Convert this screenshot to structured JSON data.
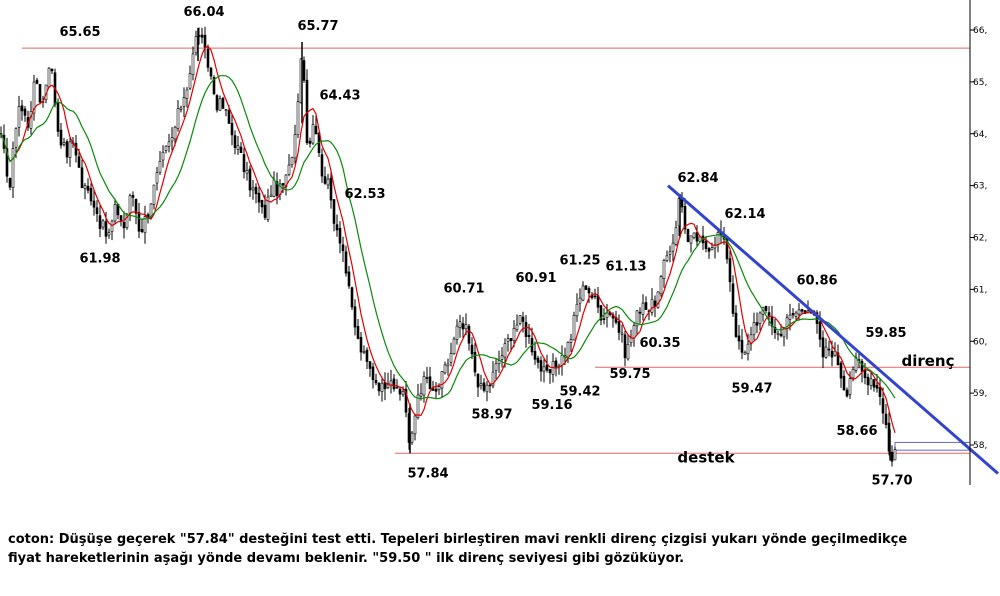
{
  "chart_data": {
    "type": "candlestick",
    "title": "",
    "y_axis": {
      "side": "right",
      "ylim": [
        57.4,
        66.5
      ],
      "ticks": [
        {
          "value": 66,
          "label": "66,"
        },
        {
          "value": 65,
          "label": "65,"
        },
        {
          "value": 64,
          "label": "64,"
        },
        {
          "value": 63,
          "label": "63,"
        },
        {
          "value": 62,
          "label": "62,"
        },
        {
          "value": 61,
          "label": "61,"
        },
        {
          "value": 60,
          "label": "60,"
        },
        {
          "value": 59,
          "label": "59,"
        },
        {
          "value": 58,
          "label": "58,"
        }
      ]
    },
    "grid": false,
    "x_range": [
      0,
      970
    ],
    "horizontal_lines": [
      {
        "name": "top-resistance",
        "value": 65.65,
        "x_start": 22,
        "x_end": 970,
        "color": "#e06666"
      },
      {
        "name": "direnc-level",
        "value": 59.5,
        "x_start": 595,
        "x_end": 970,
        "color": "#e06666"
      },
      {
        "name": "destek-level",
        "value": 57.84,
        "x_start": 395,
        "x_end": 970,
        "color": "#e06666"
      }
    ],
    "trendline": {
      "name": "direnc-trendline",
      "x1": 668,
      "y1": 63.0,
      "x2": 998,
      "y2": 57.45,
      "color": "#3344cc"
    },
    "price_path": [
      [
        0,
        64.0
      ],
      [
        10,
        63.0
      ],
      [
        18,
        64.6
      ],
      [
        28,
        64.2
      ],
      [
        36,
        65.1
      ],
      [
        42,
        64.5
      ],
      [
        50,
        65.5
      ],
      [
        58,
        64.1
      ],
      [
        66,
        63.6
      ],
      [
        74,
        63.9
      ],
      [
        82,
        63.0
      ],
      [
        92,
        62.8
      ],
      [
        100,
        62.3
      ],
      [
        108,
        61.98
      ],
      [
        116,
        62.6
      ],
      [
        124,
        62.2
      ],
      [
        132,
        62.9
      ],
      [
        140,
        62.1
      ],
      [
        148,
        62.5
      ],
      [
        156,
        63.1
      ],
      [
        164,
        63.6
      ],
      [
        172,
        63.9
      ],
      [
        180,
        64.5
      ],
      [
        188,
        65.0
      ],
      [
        194,
        65.6
      ],
      [
        198,
        66.04
      ],
      [
        204,
        65.6
      ],
      [
        210,
        65.2
      ],
      [
        216,
        64.6
      ],
      [
        224,
        64.5
      ],
      [
        232,
        64.0
      ],
      [
        240,
        63.6
      ],
      [
        248,
        63.1
      ],
      [
        256,
        62.8
      ],
      [
        264,
        62.4
      ],
      [
        272,
        63.0
      ],
      [
        280,
        62.9
      ],
      [
        288,
        63.2
      ],
      [
        295,
        64.0
      ],
      [
        302,
        65.77
      ],
      [
        308,
        63.6
      ],
      [
        314,
        64.4
      ],
      [
        320,
        63.4
      ],
      [
        328,
        63.0
      ],
      [
        335,
        62.3
      ],
      [
        342,
        61.9
      ],
      [
        350,
        60.8
      ],
      [
        358,
        60.0
      ],
      [
        366,
        59.6
      ],
      [
        374,
        59.3
      ],
      [
        382,
        59.1
      ],
      [
        390,
        59.4
      ],
      [
        398,
        58.9
      ],
      [
        404,
        59.1
      ],
      [
        410,
        57.84
      ],
      [
        418,
        59.0
      ],
      [
        426,
        59.3
      ],
      [
        434,
        58.9
      ],
      [
        442,
        59.3
      ],
      [
        450,
        59.7
      ],
      [
        458,
        60.3
      ],
      [
        466,
        60.2
      ],
      [
        474,
        59.5
      ],
      [
        482,
        59.0
      ],
      [
        490,
        59.2
      ],
      [
        498,
        59.6
      ],
      [
        506,
        59.9
      ],
      [
        514,
        60.3
      ],
      [
        522,
        60.4
      ],
      [
        530,
        60.0
      ],
      [
        538,
        59.6
      ],
      [
        546,
        59.3
      ],
      [
        554,
        59.5
      ],
      [
        562,
        59.7
      ],
      [
        570,
        60.0
      ],
      [
        578,
        60.8
      ],
      [
        586,
        61.1
      ],
      [
        594,
        60.8
      ],
      [
        602,
        60.5
      ],
      [
        610,
        60.6
      ],
      [
        618,
        60.3
      ],
      [
        626,
        59.75
      ],
      [
        634,
        60.3
      ],
      [
        642,
        60.8
      ],
      [
        650,
        60.6
      ],
      [
        658,
        60.9
      ],
      [
        666,
        61.6
      ],
      [
        674,
        62.0
      ],
      [
        680,
        62.84
      ],
      [
        688,
        61.9
      ],
      [
        696,
        62.0
      ],
      [
        704,
        61.8
      ],
      [
        712,
        61.9
      ],
      [
        720,
        62.1
      ],
      [
        728,
        61.6
      ],
      [
        734,
        60.4
      ],
      [
        740,
        59.8
      ],
      [
        746,
        59.7
      ],
      [
        752,
        60.3
      ],
      [
        760,
        60.5
      ],
      [
        768,
        60.6
      ],
      [
        776,
        60.1
      ],
      [
        784,
        60.3
      ],
      [
        792,
        60.5
      ],
      [
        800,
        60.6
      ],
      [
        808,
        60.7
      ],
      [
        816,
        60.4
      ],
      [
        822,
        59.7
      ],
      [
        830,
        59.9
      ],
      [
        838,
        59.6
      ],
      [
        846,
        59.0
      ],
      [
        852,
        59.5
      ],
      [
        858,
        59.6
      ],
      [
        864,
        59.3
      ],
      [
        872,
        59.3
      ],
      [
        880,
        59.0
      ],
      [
        886,
        58.4
      ],
      [
        890,
        57.7
      ],
      [
        895,
        57.9
      ]
    ],
    "moving_averages": [
      {
        "name": "ma-fast",
        "period": 9,
        "color": "#e00000"
      },
      {
        "name": "ma-slow",
        "period": 22,
        "color": "#0a8a0a"
      }
    ],
    "price_labels": [
      {
        "text": "65.65",
        "x": 80,
        "y": 65.65
      },
      {
        "text": "66.04",
        "x": 204,
        "y": 66.04
      },
      {
        "text": "65.77",
        "x": 318,
        "y": 65.77
      },
      {
        "text": "64.43",
        "x": 340,
        "y": 64.43
      },
      {
        "text": "62.53",
        "x": 365,
        "y": 62.53
      },
      {
        "text": "61.98",
        "x": 100,
        "y": 61.98
      },
      {
        "text": "62.84",
        "x": 698,
        "y": 62.84
      },
      {
        "text": "62.14",
        "x": 745,
        "y": 62.14
      },
      {
        "text": "60.71",
        "x": 464,
        "y": 60.71
      },
      {
        "text": "60.91",
        "x": 536,
        "y": 60.91
      },
      {
        "text": "61.25",
        "x": 580,
        "y": 61.25
      },
      {
        "text": "61.13",
        "x": 626,
        "y": 61.13
      },
      {
        "text": "60.86",
        "x": 817,
        "y": 60.86
      },
      {
        "text": "60.35",
        "x": 660,
        "y": 60.35
      },
      {
        "text": "59.85",
        "x": 886,
        "y": 59.85
      },
      {
        "text": "59.42",
        "x": 580,
        "y": 59.42
      },
      {
        "text": "59.75",
        "x": 630,
        "y": 59.75
      },
      {
        "text": "59.47",
        "x": 752,
        "y": 59.47
      },
      {
        "text": "58.97",
        "x": 492,
        "y": 58.97
      },
      {
        "text": "59.16",
        "x": 552,
        "y": 59.16
      },
      {
        "text": "58.66",
        "x": 857,
        "y": 58.66
      },
      {
        "text": "57.84",
        "x": 428,
        "y": 57.84
      },
      {
        "text": "57.70",
        "x": 892,
        "y": 57.7
      }
    ],
    "annotations": [
      {
        "text": "direnç",
        "x": 928,
        "y": 59.5
      },
      {
        "text": "destek",
        "x": 706,
        "y": 57.84
      }
    ]
  },
  "caption": {
    "line1": "coton: Düşüşe geçerek \"57.84\" desteğini test etti. Tepeleri birleştiren mavi renkli direnç çizgisi yukarı yönde geçilmedikçe",
    "line2": "fiyat hareketlerinin aşağı yönde devamı beklenir. \"59.50 \" ilk direnç seviyesi gibi gözüküyor."
  }
}
